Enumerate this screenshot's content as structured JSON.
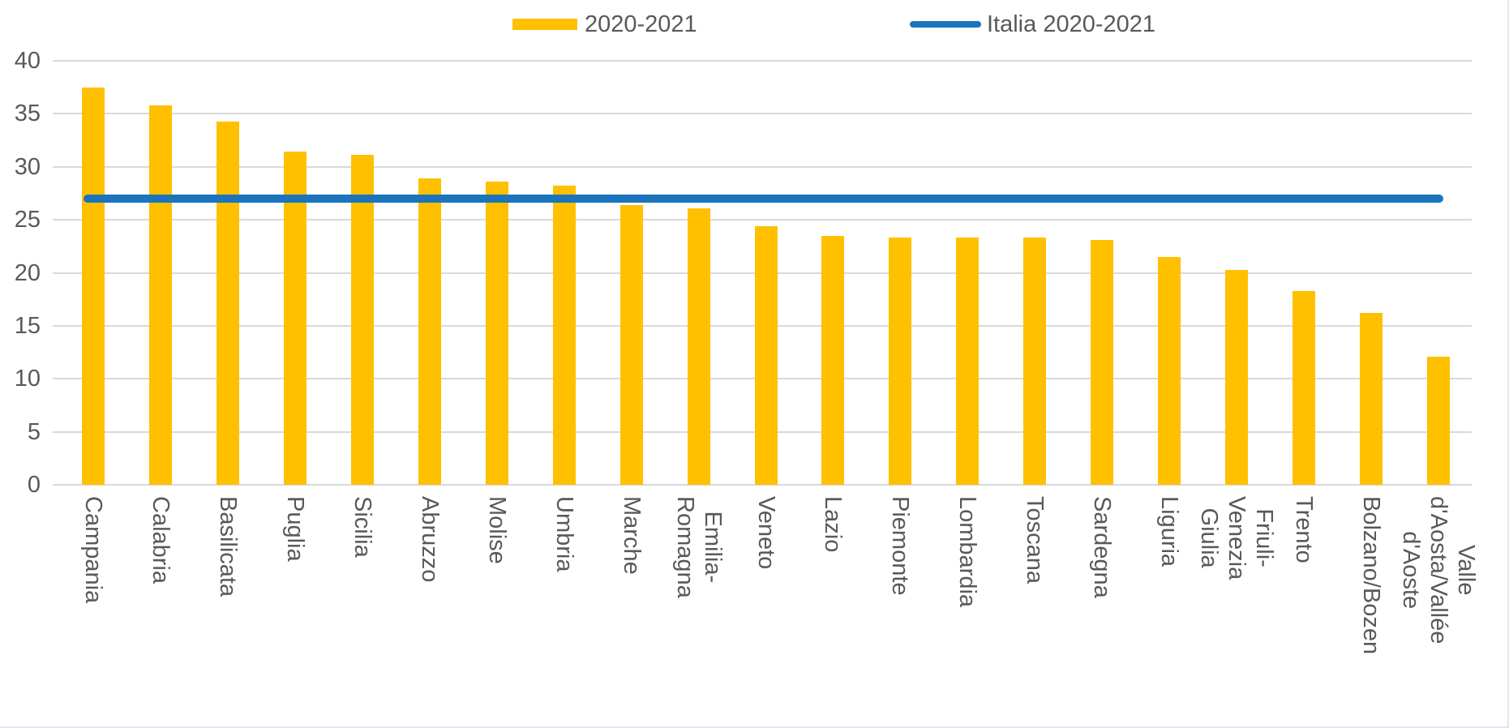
{
  "legend": [
    {
      "label": "2020-2021",
      "type": "bar",
      "color": "#ffc000"
    },
    {
      "label": "Italia 2020-2021",
      "type": "line",
      "color": "#1b74bc"
    }
  ],
  "colors": {
    "bar": "#ffc000",
    "line": "#1b74bc",
    "gridline": "#d9d9d9",
    "text": "#595959"
  },
  "chart_data": {
    "type": "bar",
    "title": "",
    "xlabel": "",
    "ylabel": "",
    "ylim": [
      0,
      40
    ],
    "yticks": [
      0,
      5,
      10,
      15,
      20,
      25,
      30,
      35,
      40
    ],
    "grid": "horizontal",
    "legend_position": "top",
    "categories": [
      "Campania",
      "Calabria",
      "Basilicata",
      "Puglia",
      "Sicilia",
      "Abruzzo",
      "Molise",
      "Umbria",
      "Marche",
      "Emilia-Romagna",
      "Veneto",
      "Lazio",
      "Piemonte",
      "Lombardia",
      "Toscana",
      "Sardegna",
      "Liguria",
      "Friuli-Venezia Giulia",
      "Trento",
      "Bolzano/Bozen",
      "Valle d'Aosta/Vallée\nd'Aoste"
    ],
    "series": [
      {
        "name": "2020-2021",
        "type": "bar",
        "color": "#ffc000",
        "values": [
          37.5,
          35.8,
          34.3,
          31.4,
          31.1,
          28.9,
          28.6,
          28.2,
          26.4,
          26.1,
          24.4,
          23.5,
          23.3,
          23.3,
          23.3,
          23.1,
          21.5,
          20.3,
          18.3,
          16.2,
          12.1
        ]
      },
      {
        "name": "Italia 2020-2021",
        "type": "line",
        "color": "#1b74bc",
        "value": 27.0
      }
    ]
  }
}
